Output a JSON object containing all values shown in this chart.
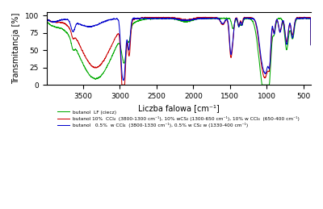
{
  "xlabel": "Liczba falowa [cm⁻¹]",
  "ylabel": "Transmitancja [%]",
  "xlim": [
    4000,
    400
  ],
  "ylim": [
    0,
    105
  ],
  "yticks": [
    0,
    25,
    50,
    75,
    100
  ],
  "xticks": [
    3500,
    3000,
    2500,
    2000,
    1500,
    1000,
    500
  ],
  "line_colors": [
    "#00aa00",
    "#cc0000",
    "#0000cc"
  ],
  "legend": [
    "butanol  LF (ciecz)",
    "butanol 10%  CCl₄  (3800-1300 cm⁻¹), 10% wCS₂ (1300-650 cm⁻¹), 10% w CCl₄  (650-400 cm⁻¹)",
    "butanol   0.5%  w CCl₄  (3800-1330 cm⁻¹), 0.5% w CS₂ w (1330-400 cm⁻¹)"
  ],
  "background": "#ffffff"
}
